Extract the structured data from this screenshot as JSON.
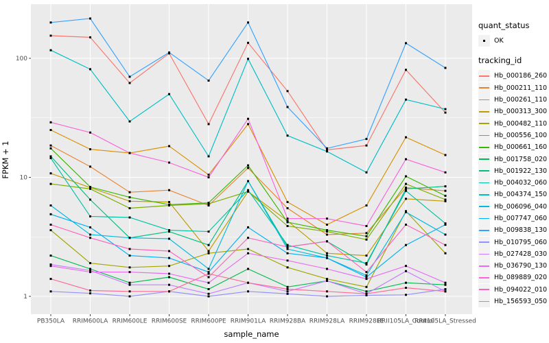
{
  "figure": {
    "x_axis_title": "sample_name",
    "y_axis_title": "FPKM + 1",
    "y_tick_labels": [
      "1",
      "10",
      "100"
    ],
    "panel_bg": "#EBEBEB",
    "grid_color": "#FFFFFF",
    "tick_mark_color": "#333333",
    "tick_label_color": "#4D4D4D",
    "point_color": "#000000"
  },
  "legend": {
    "quant_status": {
      "title": "quant_status",
      "items": [
        "OK"
      ]
    },
    "tracking_id": {
      "title": "tracking_id"
    }
  },
  "chart_data": {
    "type": "line",
    "title": "",
    "xlabel": "sample_name",
    "ylabel": "FPKM + 1",
    "y_scale": "log10",
    "ylim": [
      0.71,
      286
    ],
    "y_ticks": [
      1,
      10,
      100
    ],
    "y_minor_ticks": [
      3.162,
      31.62
    ],
    "grid": true,
    "legend_position": "right",
    "marker": "small-black-square",
    "categories": [
      "PB350LA",
      "RRIM600LA",
      "RRIM600LE",
      "RRIM600SE",
      "RRIM600PE",
      "RRIM901LA",
      "RRIM928BA",
      "RRIM928LA",
      "RRIM928LE",
      "RRII105LA_Control",
      "RRII105LA_Stressed"
    ],
    "series": [
      {
        "name": "Hb_000186_260",
        "color": "#F8766D",
        "values": [
          155,
          150,
          62,
          110,
          28,
          135,
          53,
          17,
          18.5,
          80,
          35
        ]
      },
      {
        "name": "Hb_000211_110",
        "color": "#EA8331",
        "values": [
          18.5,
          12.3,
          7.5,
          7.8,
          5.8,
          12.0,
          5.5,
          3.3,
          3.4,
          8.2,
          7.7
        ]
      },
      {
        "name": "Hb_000261_110",
        "color": "#D89000",
        "values": [
          25,
          17.2,
          16,
          18.3,
          10.5,
          28,
          6.2,
          4.0,
          5.8,
          21.7,
          15.4
        ]
      },
      {
        "name": "Hb_000313_300",
        "color": "#C09B00",
        "values": [
          10.8,
          8.2,
          6.3,
          6.2,
          2.4,
          7.6,
          4.3,
          2.3,
          2.2,
          6.6,
          6.3
        ]
      },
      {
        "name": "Hb_000482_110",
        "color": "#A3A500",
        "values": [
          3.6,
          1.9,
          1.75,
          1.8,
          2.3,
          2.5,
          1.75,
          1.4,
          1.2,
          5.2,
          2.3
        ]
      },
      {
        "name": "Hb_000556_100",
        "color": "#7CAE00",
        "values": [
          8.8,
          8.0,
          5.5,
          5.8,
          6.0,
          7.6,
          3.9,
          3.5,
          3.0,
          8.8,
          6.5
        ]
      },
      {
        "name": "Hb_000661_160",
        "color": "#39B600",
        "values": [
          17.5,
          8.3,
          6.8,
          5.9,
          6.1,
          12.6,
          4.2,
          3.6,
          3.2,
          10.2,
          7.0
        ]
      },
      {
        "name": "Hb_001758_020",
        "color": "#00BB4E",
        "values": [
          2.2,
          1.7,
          1.3,
          1.45,
          1.15,
          1.7,
          1.2,
          1.35,
          1.1,
          1.3,
          1.25
        ]
      },
      {
        "name": "Hb_001922_130",
        "color": "#00BF7D",
        "values": [
          15,
          6.5,
          3.1,
          3.5,
          2.7,
          9.3,
          2.6,
          2.9,
          1.85,
          8.0,
          8.4
        ]
      },
      {
        "name": "Hb_004032_060",
        "color": "#00C1A3",
        "values": [
          14.5,
          4.7,
          4.6,
          3.6,
          3.5,
          7.8,
          2.7,
          2.2,
          1.9,
          7.7,
          4.1
        ]
      },
      {
        "name": "Hb_004374_150",
        "color": "#00BFC4",
        "values": [
          117,
          81,
          29.5,
          50,
          15,
          99,
          22.4,
          16.5,
          11,
          45,
          37.4
        ]
      },
      {
        "name": "Hb_006096_040",
        "color": "#00BAE0",
        "values": [
          5.8,
          3.3,
          3.1,
          3.05,
          1.7,
          9.3,
          2.5,
          2.1,
          1.5,
          5.1,
          3.3
        ]
      },
      {
        "name": "Hb_007747_060",
        "color": "#00B0F6",
        "values": [
          4.9,
          3.8,
          2.2,
          2.1,
          1.6,
          3.8,
          2.3,
          2.1,
          1.45,
          2.7,
          4.0
        ]
      },
      {
        "name": "Hb_009838_130",
        "color": "#35A2FF",
        "values": [
          200,
          216,
          70,
          112,
          65,
          200,
          39,
          17.5,
          21,
          134,
          83
        ]
      },
      {
        "name": "Hb_010795_060",
        "color": "#9590FF",
        "values": [
          1.1,
          1.06,
          1.0,
          1.1,
          1.0,
          1.1,
          1.05,
          1.0,
          1.02,
          1.03,
          1.15
        ]
      },
      {
        "name": "Hb_027428_030",
        "color": "#C77CFF",
        "values": [
          1.85,
          1.65,
          1.25,
          1.25,
          1.05,
          1.3,
          1.1,
          1.35,
          1.05,
          1.63,
          1.1
        ]
      },
      {
        "name": "Hb_036790_130",
        "color": "#E76BF3",
        "values": [
          1.8,
          1.6,
          1.6,
          1.55,
          1.3,
          2.3,
          2.0,
          1.7,
          1.4,
          1.8,
          1.3
        ]
      },
      {
        "name": "Hb_089889_020",
        "color": "#FA62DB",
        "values": [
          29,
          23.8,
          16,
          13.3,
          10,
          31,
          4.5,
          4.5,
          3.9,
          14.2,
          11
        ]
      },
      {
        "name": "Hb_094022_010",
        "color": "#FF62BC",
        "values": [
          4.0,
          3.1,
          2.5,
          2.4,
          1.45,
          3.1,
          2.6,
          2.9,
          1.6,
          4.0,
          2.7
        ]
      },
      {
        "name": "Hb_156593_050",
        "color": "#FF6A98",
        "values": [
          1.4,
          1.12,
          1.1,
          1.1,
          1.55,
          1.3,
          1.15,
          1.1,
          1.05,
          1.18,
          1.1
        ]
      }
    ]
  }
}
